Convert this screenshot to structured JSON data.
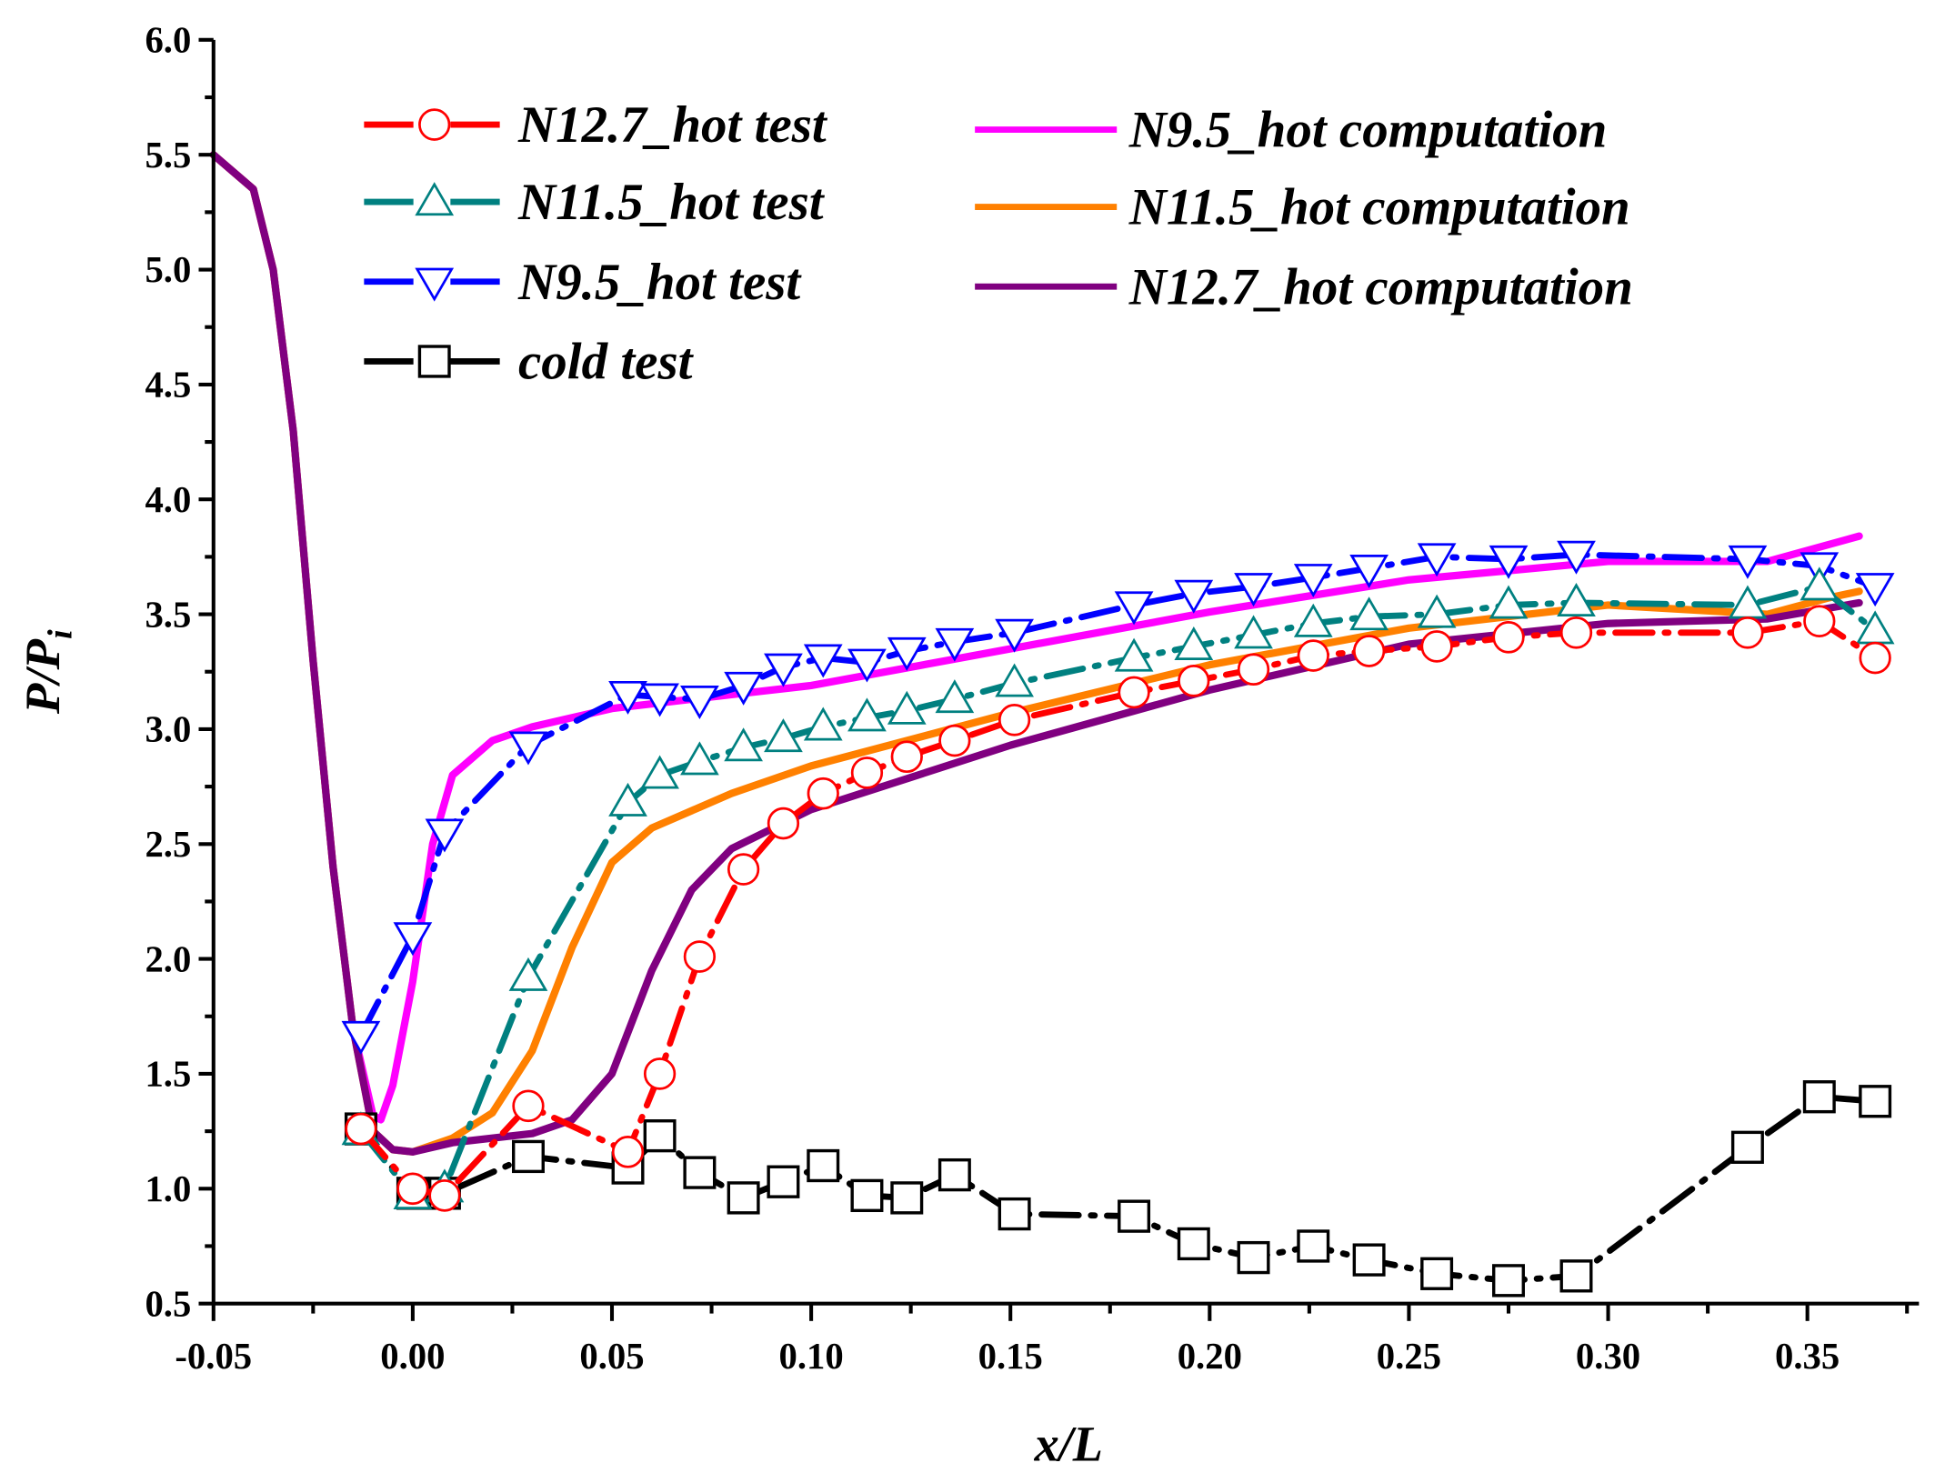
{
  "chart_data": {
    "type": "line",
    "title": "",
    "xlabel": "x/L",
    "ylabel": "P/P",
    "ylabel_subscript": "i",
    "xlim": [
      -0.05,
      0.378
    ],
    "ylim": [
      0.5,
      6.0
    ],
    "x_ticks": [
      "-0.05",
      "0.00",
      "0.05",
      "0.10",
      "0.15",
      "0.20",
      "0.25",
      "0.30",
      "0.35"
    ],
    "y_ticks": [
      "0.5",
      "1.0",
      "1.5",
      "2.0",
      "2.5",
      "3.0",
      "3.5",
      "4.0",
      "4.5",
      "5.0",
      "5.5",
      "6.0"
    ],
    "grid": false,
    "legend_position": "top",
    "series": [
      {
        "name": "N12.7_hot test",
        "color": "#ff0000",
        "marker": "circle",
        "style": "dash-dot",
        "x": [
          -0.013,
          0.0,
          0.008,
          0.029,
          0.054,
          0.062,
          0.072,
          0.083,
          0.093,
          0.103,
          0.114,
          0.124,
          0.136,
          0.151,
          0.181,
          0.196,
          0.211,
          0.226,
          0.24,
          0.257,
          0.275,
          0.292,
          0.335,
          0.353,
          0.367
        ],
        "y": [
          1.26,
          1.0,
          0.97,
          1.36,
          1.16,
          1.5,
          2.01,
          2.39,
          2.59,
          2.72,
          2.81,
          2.88,
          2.95,
          3.04,
          3.16,
          3.21,
          3.26,
          3.32,
          3.34,
          3.36,
          3.4,
          3.42,
          3.42,
          3.47,
          3.31
        ]
      },
      {
        "name": "N11.5_hot test",
        "color": "#008080",
        "marker": "triangle-up",
        "style": "dash-dot",
        "x": [
          -0.013,
          0.0,
          0.008,
          0.029,
          0.054,
          0.062,
          0.072,
          0.083,
          0.093,
          0.103,
          0.114,
          0.124,
          0.136,
          0.151,
          0.181,
          0.196,
          0.211,
          0.226,
          0.24,
          0.257,
          0.275,
          0.292,
          0.335,
          0.353,
          0.367
        ],
        "y": [
          1.25,
          0.97,
          1.0,
          1.92,
          2.68,
          2.8,
          2.86,
          2.92,
          2.96,
          3.01,
          3.05,
          3.08,
          3.13,
          3.2,
          3.31,
          3.36,
          3.41,
          3.46,
          3.49,
          3.5,
          3.54,
          3.55,
          3.54,
          3.62,
          3.43
        ]
      },
      {
        "name": "N9.5_hot test",
        "color": "#0000ff",
        "marker": "triangle-down",
        "style": "dash-dot",
        "x": [
          -0.013,
          0.0,
          0.008,
          0.029,
          0.054,
          0.062,
          0.072,
          0.083,
          0.093,
          0.103,
          0.114,
          0.124,
          0.136,
          0.151,
          0.181,
          0.196,
          0.211,
          0.226,
          0.24,
          0.257,
          0.275,
          0.292,
          0.335,
          0.353,
          0.367
        ],
        "y": [
          1.67,
          2.1,
          2.55,
          2.93,
          3.15,
          3.14,
          3.13,
          3.19,
          3.27,
          3.31,
          3.29,
          3.34,
          3.38,
          3.42,
          3.54,
          3.59,
          3.62,
          3.66,
          3.7,
          3.75,
          3.74,
          3.76,
          3.74,
          3.71,
          3.62
        ]
      },
      {
        "name": "cold test",
        "color": "#000000",
        "marker": "square",
        "style": "dash-dot",
        "x": [
          -0.013,
          0.0,
          0.008,
          0.029,
          0.054,
          0.062,
          0.072,
          0.083,
          0.093,
          0.103,
          0.114,
          0.124,
          0.136,
          0.151,
          0.181,
          0.196,
          0.211,
          0.226,
          0.24,
          0.257,
          0.275,
          0.292,
          0.335,
          0.353,
          0.367
        ],
        "y": [
          1.26,
          0.98,
          0.98,
          1.14,
          1.09,
          1.23,
          1.07,
          0.96,
          1.03,
          1.1,
          0.97,
          0.96,
          1.06,
          0.89,
          0.88,
          0.76,
          0.7,
          0.75,
          0.69,
          0.63,
          0.6,
          0.62,
          1.18,
          1.4,
          1.38
        ]
      },
      {
        "name": "N9.5_hot computation",
        "color": "#ff00ff",
        "marker": "none",
        "style": "solid",
        "x": [
          -0.05,
          -0.04,
          -0.035,
          -0.03,
          -0.025,
          -0.02,
          -0.015,
          -0.01,
          -0.008,
          -0.005,
          0.0,
          0.005,
          0.01,
          0.02,
          0.03,
          0.05,
          0.08,
          0.1,
          0.15,
          0.2,
          0.25,
          0.3,
          0.34,
          0.363
        ],
        "y": [
          5.5,
          5.35,
          5.0,
          4.3,
          3.3,
          2.4,
          1.7,
          1.32,
          1.3,
          1.45,
          1.9,
          2.5,
          2.8,
          2.95,
          3.01,
          3.09,
          3.15,
          3.19,
          3.35,
          3.51,
          3.65,
          3.73,
          3.73,
          3.84
        ]
      },
      {
        "name": "N11.5_hot computation",
        "color": "#ff8000",
        "marker": "none",
        "style": "solid",
        "x": [
          -0.05,
          -0.04,
          -0.035,
          -0.03,
          -0.025,
          -0.02,
          -0.015,
          -0.01,
          -0.005,
          0.0,
          0.01,
          0.02,
          0.03,
          0.04,
          0.05,
          0.06,
          0.08,
          0.1,
          0.15,
          0.2,
          0.25,
          0.3,
          0.34,
          0.355,
          0.363
        ],
        "y": [
          5.5,
          5.35,
          5.0,
          4.3,
          3.3,
          2.4,
          1.7,
          1.25,
          1.17,
          1.16,
          1.22,
          1.33,
          1.6,
          2.05,
          2.42,
          2.57,
          2.72,
          2.84,
          3.07,
          3.28,
          3.44,
          3.54,
          3.5,
          3.57,
          3.6
        ]
      },
      {
        "name": "N12.7_hot computation",
        "color": "#800080",
        "marker": "none",
        "style": "solid",
        "x": [
          -0.05,
          -0.04,
          -0.035,
          -0.03,
          -0.025,
          -0.02,
          -0.015,
          -0.01,
          -0.005,
          0.0,
          0.01,
          0.03,
          0.04,
          0.05,
          0.06,
          0.07,
          0.08,
          0.1,
          0.15,
          0.2,
          0.25,
          0.3,
          0.34,
          0.363
        ],
        "y": [
          5.5,
          5.35,
          5.0,
          4.3,
          3.3,
          2.4,
          1.7,
          1.25,
          1.17,
          1.16,
          1.2,
          1.24,
          1.3,
          1.5,
          1.95,
          2.3,
          2.48,
          2.65,
          2.93,
          3.17,
          3.37,
          3.46,
          3.48,
          3.55
        ]
      }
    ]
  }
}
